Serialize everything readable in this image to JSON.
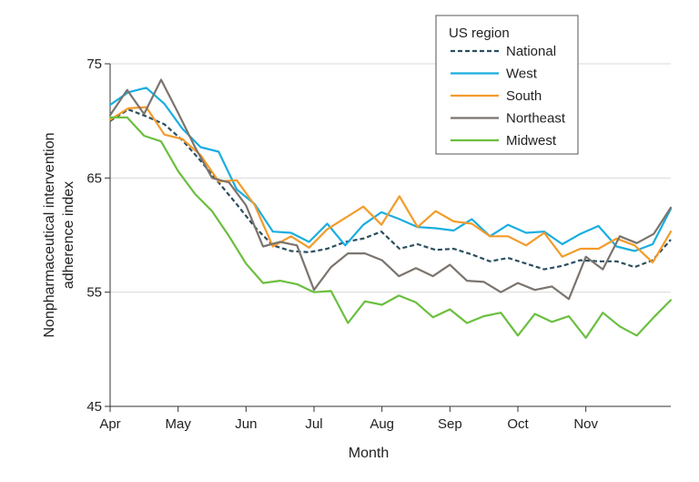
{
  "chart_data": {
    "type": "line",
    "title": "",
    "xlabel": "Month",
    "ylabel_lines": [
      "Nonpharmaceutical intervention",
      "adherence index"
    ],
    "ylim": [
      45,
      75
    ],
    "yticks": [
      "75",
      "65",
      "55",
      "45"
    ],
    "ytick_values": [
      75,
      65,
      55,
      45
    ],
    "xlim": [
      0,
      33
    ],
    "xticks": [
      "Apr",
      "May",
      "Jun",
      "Jul",
      "Aug",
      "Sep",
      "Oct",
      "Nov"
    ],
    "xtick_positions": [
      0,
      4,
      8,
      12,
      16,
      20,
      24,
      28
    ],
    "grid": "horizontal",
    "legend_title": "US region",
    "legend_position": "top-right",
    "series": [
      {
        "name": "National",
        "color": "#2b4f60",
        "dashed": true,
        "values": [
          70.0,
          71.0,
          70.4,
          69.7,
          68.3,
          66.5,
          64.6,
          62.7,
          60.7,
          59.1,
          58.6,
          58.5,
          58.8,
          59.4,
          59.7,
          60.3,
          58.8,
          59.2,
          58.7,
          58.8,
          58.3,
          57.7,
          58.0,
          57.5,
          57.0,
          57.3,
          57.8,
          57.7,
          57.7,
          57.2,
          57.8,
          59.6
        ]
      },
      {
        "name": "West",
        "color": "#19aee0",
        "dashed": false,
        "values": [
          71.4,
          72.5,
          72.9,
          71.5,
          69.3,
          67.7,
          67.3,
          64.0,
          62.7,
          60.3,
          60.2,
          59.4,
          61.0,
          59.1,
          60.9,
          62.0,
          61.4,
          60.7,
          60.6,
          60.4,
          61.4,
          59.9,
          60.9,
          60.2,
          60.3,
          59.2,
          60.1,
          60.8,
          59.0,
          58.6,
          59.2,
          62.3
        ]
      },
      {
        "name": "South",
        "color": "#f39b2b",
        "dashed": false,
        "values": [
          70.1,
          71.1,
          71.2,
          68.8,
          68.4,
          67.0,
          64.7,
          64.8,
          62.6,
          59.0,
          59.9,
          58.9,
          60.5,
          61.5,
          62.5,
          60.9,
          63.4,
          60.7,
          62.1,
          61.2,
          61.0,
          59.9,
          59.9,
          59.1,
          60.2,
          58.1,
          58.8,
          58.8,
          59.7,
          59.1,
          57.6,
          60.3
        ]
      },
      {
        "name": "Northeast",
        "color": "#7b746e",
        "dashed": false,
        "values": [
          70.5,
          72.7,
          70.6,
          73.6,
          70.7,
          67.7,
          65.0,
          64.6,
          62.6,
          59.0,
          59.4,
          59.1,
          55.2,
          57.2,
          58.4,
          58.4,
          57.8,
          56.4,
          57.1,
          56.4,
          57.4,
          56.0,
          55.9,
          55.0,
          55.8,
          55.2,
          55.5,
          54.4,
          58.1,
          57.0,
          59.9,
          59.3,
          60.1,
          62.4
        ]
      },
      {
        "name": "Midwest",
        "color": "#6bbf3f",
        "dashed": false,
        "values": [
          70.3,
          70.3,
          68.7,
          68.2,
          65.6,
          63.6,
          62.1,
          59.9,
          57.5,
          55.8,
          56.0,
          55.7,
          55.0,
          55.1,
          52.3,
          54.2,
          53.9,
          54.7,
          54.1,
          52.8,
          53.5,
          52.3,
          52.9,
          53.2,
          51.2,
          53.1,
          52.4,
          52.9,
          51.0,
          53.2,
          52.0,
          51.2,
          52.8,
          54.3
        ]
      }
    ]
  }
}
